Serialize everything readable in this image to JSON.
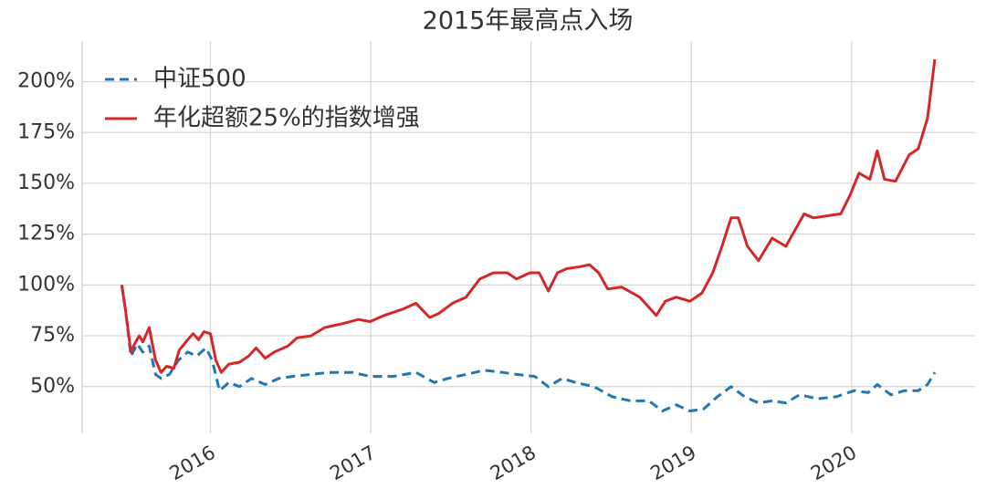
{
  "chart_data": {
    "type": "line",
    "title": "2015年最高点入场",
    "xlim": [
      2015.2,
      2020.77
    ],
    "xticks": [
      2016,
      2017,
      2018,
      2019,
      2020
    ],
    "ylim": [
      27,
      220
    ],
    "yticks": [
      {
        "value": 50,
        "label": "50%"
      },
      {
        "value": 75,
        "label": "75%"
      },
      {
        "value": 100,
        "label": "100%"
      },
      {
        "value": 125,
        "label": "125%"
      },
      {
        "value": 150,
        "label": "150%"
      },
      {
        "value": 175,
        "label": "175%"
      },
      {
        "value": 200,
        "label": "200%"
      }
    ],
    "grid": true,
    "legend": "upper-left",
    "series": [
      {
        "name": "中证500",
        "color": "#1f77b4",
        "dash": true,
        "x": [
          2015.447,
          2015.47,
          2015.504,
          2015.544,
          2015.578,
          2015.618,
          2015.658,
          2015.692,
          2015.744,
          2015.801,
          2015.858,
          2015.915,
          2015.972,
          2016.011,
          2016.057,
          2016.114,
          2016.182,
          2016.256,
          2016.342,
          2016.427,
          2016.513,
          2016.627,
          2016.741,
          2016.883,
          2016.997,
          2017.14,
          2017.282,
          2017.396,
          2017.481,
          2017.595,
          2017.709,
          2017.823,
          2017.909,
          2018.023,
          2018.108,
          2018.194,
          2018.279,
          2018.393,
          2018.507,
          2018.621,
          2018.735,
          2018.821,
          2018.906,
          2018.991,
          2019.077,
          2019.162,
          2019.248,
          2019.333,
          2019.419,
          2019.504,
          2019.59,
          2019.675,
          2019.789,
          2019.903,
          2020.017,
          2020.103,
          2020.16,
          2020.245,
          2020.33,
          2020.416,
          2020.473,
          2020.519
        ],
        "values": [
          100,
          88,
          65,
          71,
          67,
          70,
          56,
          54,
          56,
          63,
          67,
          65,
          69,
          63,
          48,
          52,
          50,
          54,
          51,
          54,
          55,
          56,
          57,
          57,
          55,
          55,
          57,
          52,
          54,
          56,
          58,
          57,
          56,
          55,
          50,
          54,
          52,
          50,
          45,
          43,
          43,
          38,
          41,
          38,
          39,
          45,
          50,
          45,
          42,
          43,
          42,
          46,
          44,
          45,
          48,
          47,
          51,
          46,
          48,
          48,
          51,
          57
        ]
      },
      {
        "name": "年化超额25%的指数增强",
        "color": "#d62728",
        "dash": false,
        "x": [
          2015.447,
          2015.47,
          2015.504,
          2015.527,
          2015.556,
          2015.578,
          2015.618,
          2015.658,
          2015.692,
          2015.726,
          2015.772,
          2015.806,
          2015.858,
          2015.892,
          2015.926,
          2015.96,
          2016,
          2016.034,
          2016.068,
          2016.114,
          2016.182,
          2016.239,
          2016.285,
          2016.342,
          2016.399,
          2016.484,
          2016.541,
          2016.627,
          2016.712,
          2016.826,
          2016.923,
          2016.997,
          2017.083,
          2017.197,
          2017.282,
          2017.368,
          2017.425,
          2017.51,
          2017.595,
          2017.681,
          2017.766,
          2017.852,
          2017.909,
          2017.994,
          2018.051,
          2018.108,
          2018.165,
          2018.222,
          2018.308,
          2018.365,
          2018.422,
          2018.479,
          2018.564,
          2018.678,
          2018.781,
          2018.838,
          2018.906,
          2018.991,
          2019.066,
          2019.134,
          2019.191,
          2019.248,
          2019.293,
          2019.35,
          2019.419,
          2019.504,
          2019.59,
          2019.704,
          2019.761,
          2019.846,
          2019.932,
          2019.989,
          2020.046,
          2020.114,
          2020.16,
          2020.205,
          2020.274,
          2020.359,
          2020.416,
          2020.473,
          2020.519
        ],
        "values": [
          100,
          88,
          67,
          71,
          75,
          72,
          79,
          63,
          57,
          60,
          59,
          68,
          73,
          76,
          73,
          77,
          76,
          63,
          57,
          61,
          62,
          65,
          69,
          64,
          67,
          70,
          74,
          75,
          79,
          81,
          83,
          82,
          85,
          88,
          91,
          84,
          86,
          91,
          94,
          103,
          106,
          106,
          103,
          106,
          106,
          97,
          106,
          108,
          109,
          110,
          106,
          98,
          99,
          94,
          85,
          92,
          94,
          92,
          96,
          106,
          119,
          133,
          133,
          119,
          112,
          123,
          119,
          135,
          133,
          134,
          135,
          144,
          155,
          152,
          166,
          152,
          151,
          164,
          167,
          182,
          211
        ]
      }
    ]
  }
}
